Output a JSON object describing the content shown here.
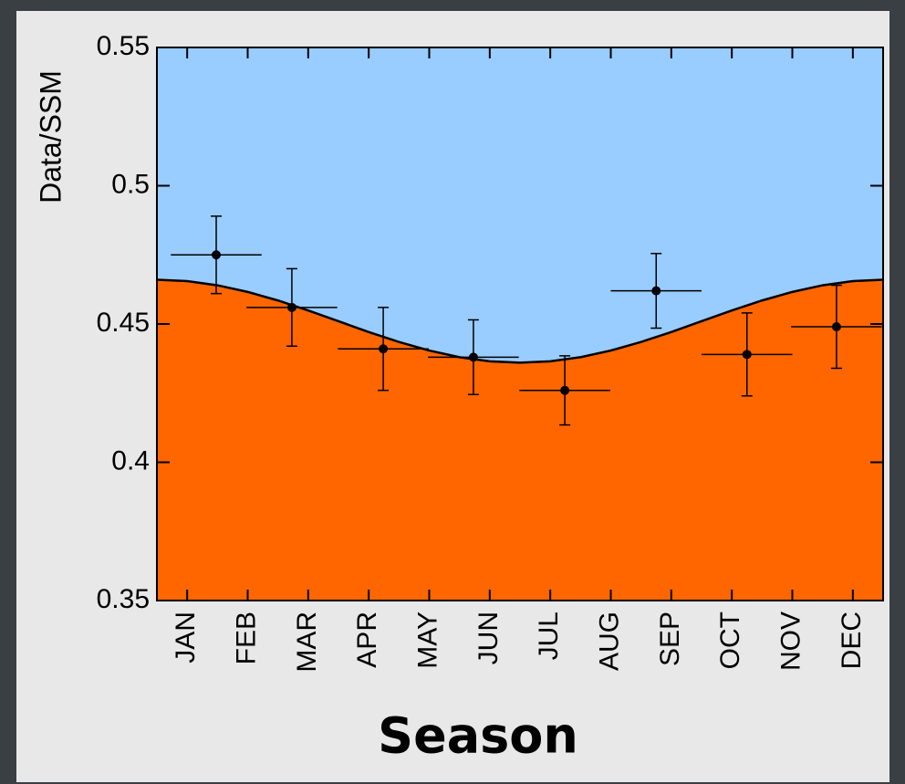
{
  "chart_data": {
    "type": "errorbar",
    "ylabel": "Data/SSM",
    "xlabel": "Season",
    "xlim": [
      0,
      12
    ],
    "ylim": [
      0.35,
      0.55
    ],
    "yticks": [
      0.35,
      0.4,
      0.45,
      0.5,
      0.55
    ],
    "xticks": [
      {
        "value": 0.5,
        "label": "JAN"
      },
      {
        "value": 1.5,
        "label": "FEB"
      },
      {
        "value": 2.5,
        "label": "MAR"
      },
      {
        "value": 3.5,
        "label": "APR"
      },
      {
        "value": 4.5,
        "label": "MAY"
      },
      {
        "value": 5.5,
        "label": "JUN"
      },
      {
        "value": 6.5,
        "label": "JUL"
      },
      {
        "value": 7.5,
        "label": "AUG"
      },
      {
        "value": 8.5,
        "label": "SEP"
      },
      {
        "value": 9.5,
        "label": "OCT"
      },
      {
        "value": 10.5,
        "label": "NOV"
      },
      {
        "value": 11.5,
        "label": "DEC"
      }
    ],
    "above_color": "#99ccff",
    "below_color": "#ff6600",
    "series": [
      {
        "color": "#000000",
        "x": [
          0.98,
          2.23,
          3.74,
          5.23,
          6.74,
          8.25,
          9.75,
          11.23
        ],
        "x_err": [
          0.75,
          0.75,
          0.75,
          0.75,
          0.75,
          0.75,
          0.75,
          0.75
        ],
        "values": [
          0.475,
          0.456,
          0.441,
          0.438,
          0.426,
          0.462,
          0.439,
          0.449
        ],
        "y_err": [
          0.014,
          0.014,
          0.015,
          0.0135,
          0.0125,
          0.0135,
          0.015,
          0.015
        ]
      }
    ],
    "curve": {
      "color": "#000000",
      "x": [
        0,
        0.5,
        1,
        1.5,
        2,
        2.5,
        3,
        3.5,
        4,
        4.5,
        5,
        5.5,
        6,
        6.5,
        7,
        7.5,
        8,
        8.5,
        9,
        9.5,
        10,
        10.5,
        11,
        11.5,
        12
      ],
      "values": [
        0.466,
        0.4655,
        0.464,
        0.4616,
        0.4585,
        0.4549,
        0.451,
        0.4471,
        0.4435,
        0.4404,
        0.438,
        0.4365,
        0.436,
        0.4365,
        0.438,
        0.4404,
        0.4435,
        0.4471,
        0.451,
        0.4549,
        0.4585,
        0.4616,
        0.464,
        0.4655,
        0.466
      ]
    }
  }
}
